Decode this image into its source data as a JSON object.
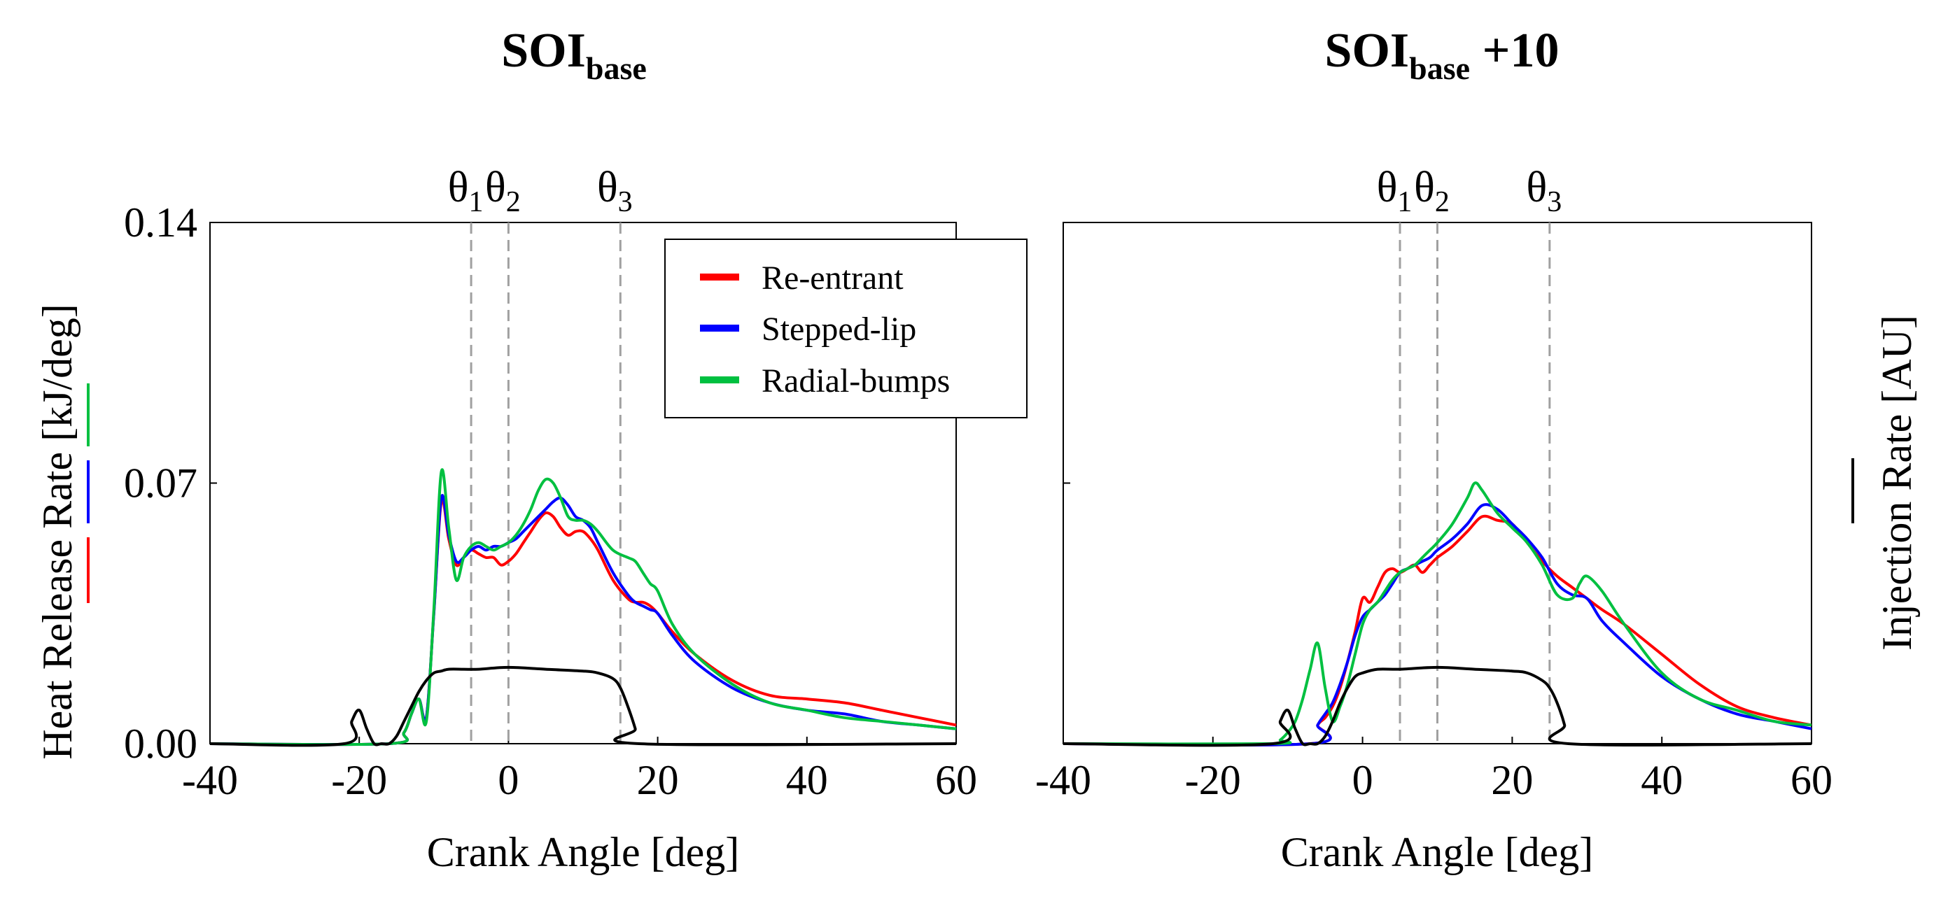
{
  "chart_data": [
    {
      "type": "line",
      "title": "SOI",
      "title_subscript": "base",
      "title_suffix": "",
      "xlabel": "Crank Angle [deg]",
      "ylabel": "Heat Release Rate [kJ/deg]",
      "y2label": "Injection Rate [AU]",
      "xlim": [
        -40,
        60
      ],
      "ylim": [
        0,
        0.14
      ],
      "x_ticks": [
        -40,
        -20,
        0,
        20,
        40,
        60
      ],
      "y_ticks": [
        0.0,
        0.07,
        0.14
      ],
      "y_tick_labels": [
        "0.00",
        "0.07",
        "0.14"
      ],
      "markers": [
        {
          "symbol": "θ",
          "sub": "1",
          "x": -5
        },
        {
          "symbol": "θ",
          "sub": "2",
          "x": 0
        },
        {
          "symbol": "θ",
          "sub": "3",
          "x": 15
        }
      ],
      "legend": [
        "Re-entrant",
        "Stepped-lip",
        "Radial-bumps"
      ],
      "series": [
        {
          "name": "Re-entrant",
          "color": "#ff0000",
          "x": [
            -40,
            -16,
            -14,
            -13,
            -12,
            -11,
            -10,
            -9,
            -8,
            -7,
            -6,
            -5,
            -4,
            -3,
            -2,
            -1,
            0,
            1,
            2,
            3,
            4,
            5,
            6,
            7,
            8,
            9,
            10,
            11,
            12,
            14,
            16,
            17,
            18,
            19,
            20,
            22,
            25,
            30,
            35,
            40,
            45,
            50,
            55,
            60
          ],
          "y": [
            0,
            0,
            0.003,
            0.008,
            0.012,
            0.007,
            0.035,
            0.065,
            0.055,
            0.048,
            0.05,
            0.052,
            0.051,
            0.05,
            0.05,
            0.048,
            0.049,
            0.051,
            0.054,
            0.057,
            0.06,
            0.062,
            0.061,
            0.058,
            0.056,
            0.057,
            0.057,
            0.055,
            0.052,
            0.044,
            0.039,
            0.038,
            0.038,
            0.037,
            0.035,
            0.03,
            0.024,
            0.017,
            0.013,
            0.012,
            0.011,
            0.009,
            0.007,
            0.005
          ]
        },
        {
          "name": "Stepped-lip",
          "color": "#0000ff",
          "x": [
            -40,
            -16,
            -14,
            -13,
            -12,
            -11,
            -10,
            -9,
            -8,
            -7,
            -6,
            -5,
            -4,
            -3,
            -2,
            -1,
            0,
            1,
            2,
            3,
            4,
            5,
            6,
            7,
            8,
            9,
            10,
            11,
            12,
            14,
            16,
            17,
            18,
            19,
            20,
            22,
            25,
            30,
            35,
            40,
            45,
            50,
            55,
            60
          ],
          "y": [
            0,
            0,
            0.003,
            0.008,
            0.012,
            0.007,
            0.035,
            0.066,
            0.056,
            0.049,
            0.05,
            0.052,
            0.053,
            0.052,
            0.053,
            0.053,
            0.054,
            0.055,
            0.057,
            0.059,
            0.061,
            0.063,
            0.065,
            0.066,
            0.064,
            0.061,
            0.06,
            0.058,
            0.054,
            0.046,
            0.04,
            0.038,
            0.037,
            0.036,
            0.035,
            0.029,
            0.022,
            0.015,
            0.011,
            0.009,
            0.008,
            0.006,
            0.005,
            0.004
          ]
        },
        {
          "name": "Radial-bumps",
          "color": "#00c040",
          "x": [
            -40,
            -16,
            -14,
            -13,
            -12,
            -11,
            -10,
            -9,
            -8,
            -7,
            -6,
            -5,
            -4,
            -3,
            -2,
            -1,
            0,
            1,
            2,
            3,
            4,
            5,
            6,
            7,
            8,
            9,
            10,
            11,
            12,
            14,
            16,
            17,
            18,
            19,
            20,
            22,
            25,
            30,
            35,
            40,
            45,
            50,
            55,
            60
          ],
          "y": [
            0,
            0,
            0.003,
            0.008,
            0.012,
            0.006,
            0.036,
            0.073,
            0.058,
            0.044,
            0.05,
            0.053,
            0.054,
            0.053,
            0.052,
            0.053,
            0.054,
            0.056,
            0.059,
            0.063,
            0.068,
            0.071,
            0.07,
            0.066,
            0.061,
            0.06,
            0.06,
            0.059,
            0.057,
            0.052,
            0.05,
            0.049,
            0.046,
            0.043,
            0.041,
            0.032,
            0.024,
            0.016,
            0.011,
            0.009,
            0.007,
            0.006,
            0.005,
            0.004
          ]
        },
        {
          "name": "Injection",
          "color": "#000000",
          "x": [
            -40,
            -22,
            -21,
            -20,
            -19,
            -18,
            -17,
            -16,
            -15,
            -14,
            -13,
            -12,
            -11,
            -10,
            -9,
            -8,
            -6,
            -4,
            0,
            5,
            10,
            12,
            14,
            15,
            16,
            17,
            17.5,
            60
          ],
          "y": [
            0,
            0,
            0.006,
            0.009,
            0.004,
            0,
            0,
            0,
            0.002,
            0.006,
            0.01,
            0.014,
            0.017,
            0.019,
            0.0195,
            0.02,
            0.02,
            0.02,
            0.0205,
            0.02,
            0.0195,
            0.019,
            0.0175,
            0.015,
            0.01,
            0.004,
            0,
            0
          ]
        }
      ]
    },
    {
      "type": "line",
      "title": "SOI",
      "title_subscript": "base",
      "title_suffix": " +10",
      "xlabel": "Crank Angle [deg]",
      "ylabel": "",
      "y2label": "Injection Rate [AU]",
      "xlim": [
        -40,
        60
      ],
      "ylim": [
        0,
        0.14
      ],
      "x_ticks": [
        -40,
        -20,
        0,
        20,
        40,
        60
      ],
      "y_ticks": [
        0.0,
        0.07,
        0.14
      ],
      "markers": [
        {
          "symbol": "θ",
          "sub": "1",
          "x": 5
        },
        {
          "symbol": "θ",
          "sub": "2",
          "x": 10
        },
        {
          "symbol": "θ",
          "sub": "3",
          "x": 25
        }
      ],
      "series": [
        {
          "name": "Re-entrant",
          "color": "#ff0000",
          "x": [
            -40,
            -7,
            -6,
            -5,
            -4,
            -3,
            -2,
            -1,
            0,
            1,
            2,
            3,
            4,
            5,
            6,
            7,
            8,
            9,
            10,
            12,
            14,
            16,
            18,
            20,
            22,
            24,
            26,
            28,
            30,
            32,
            35,
            40,
            45,
            50,
            55,
            60
          ],
          "y": [
            0,
            0,
            0.005,
            0.007,
            0.01,
            0.015,
            0.022,
            0.03,
            0.039,
            0.038,
            0.042,
            0.046,
            0.047,
            0.046,
            0.047,
            0.048,
            0.046,
            0.048,
            0.05,
            0.053,
            0.057,
            0.061,
            0.06,
            0.059,
            0.054,
            0.049,
            0.045,
            0.042,
            0.039,
            0.036,
            0.032,
            0.024,
            0.016,
            0.01,
            0.007,
            0.005
          ]
        },
        {
          "name": "Stepped-lip",
          "color": "#0000ff",
          "x": [
            -40,
            -7,
            -6,
            -5,
            -4,
            -3,
            -2,
            -1,
            0,
            1,
            2,
            3,
            4,
            5,
            6,
            7,
            8,
            9,
            10,
            12,
            14,
            16,
            18,
            20,
            22,
            24,
            26,
            28,
            30,
            32,
            35,
            40,
            45,
            50,
            55,
            60
          ],
          "y": [
            0,
            0,
            0.005,
            0.008,
            0.011,
            0.016,
            0.022,
            0.029,
            0.034,
            0.036,
            0.038,
            0.04,
            0.043,
            0.046,
            0.047,
            0.048,
            0.049,
            0.05,
            0.052,
            0.055,
            0.059,
            0.064,
            0.063,
            0.059,
            0.055,
            0.05,
            0.043,
            0.04,
            0.039,
            0.033,
            0.027,
            0.018,
            0.012,
            0.008,
            0.006,
            0.004
          ]
        },
        {
          "name": "Radial-bumps",
          "color": "#00c040",
          "x": [
            -40,
            -12,
            -11,
            -10,
            -9,
            -8,
            -7,
            -6,
            -5,
            -4,
            -3,
            -2,
            -1,
            0,
            1,
            2,
            3,
            4,
            5,
            6,
            7,
            8,
            9,
            10,
            12,
            14,
            15,
            16,
            18,
            20,
            22,
            24,
            26,
            28,
            29,
            30,
            32,
            35,
            40,
            45,
            50,
            55,
            60
          ],
          "y": [
            0,
            0,
            0.001,
            0.003,
            0.006,
            0.012,
            0.02,
            0.027,
            0.015,
            0.006,
            0.01,
            0.016,
            0.024,
            0.032,
            0.036,
            0.038,
            0.041,
            0.044,
            0.046,
            0.047,
            0.048,
            0.05,
            0.052,
            0.054,
            0.059,
            0.066,
            0.07,
            0.068,
            0.062,
            0.058,
            0.054,
            0.048,
            0.04,
            0.039,
            0.043,
            0.045,
            0.041,
            0.032,
            0.019,
            0.012,
            0.009,
            0.006,
            0.005
          ]
        },
        {
          "name": "Injection",
          "color": "#000000",
          "x": [
            -40,
            -12,
            -11,
            -10,
            -9,
            -8,
            -7,
            -6,
            -5,
            -4,
            -3,
            -2,
            -1,
            0,
            2,
            5,
            10,
            15,
            20,
            22,
            24,
            25,
            26,
            27,
            27.5,
            60
          ],
          "y": [
            0,
            0,
            0.006,
            0.009,
            0.004,
            0,
            0,
            0,
            0.002,
            0.006,
            0.011,
            0.015,
            0.018,
            0.019,
            0.02,
            0.02,
            0.0205,
            0.02,
            0.0195,
            0.019,
            0.017,
            0.015,
            0.011,
            0.005,
            0,
            0
          ]
        }
      ]
    }
  ]
}
